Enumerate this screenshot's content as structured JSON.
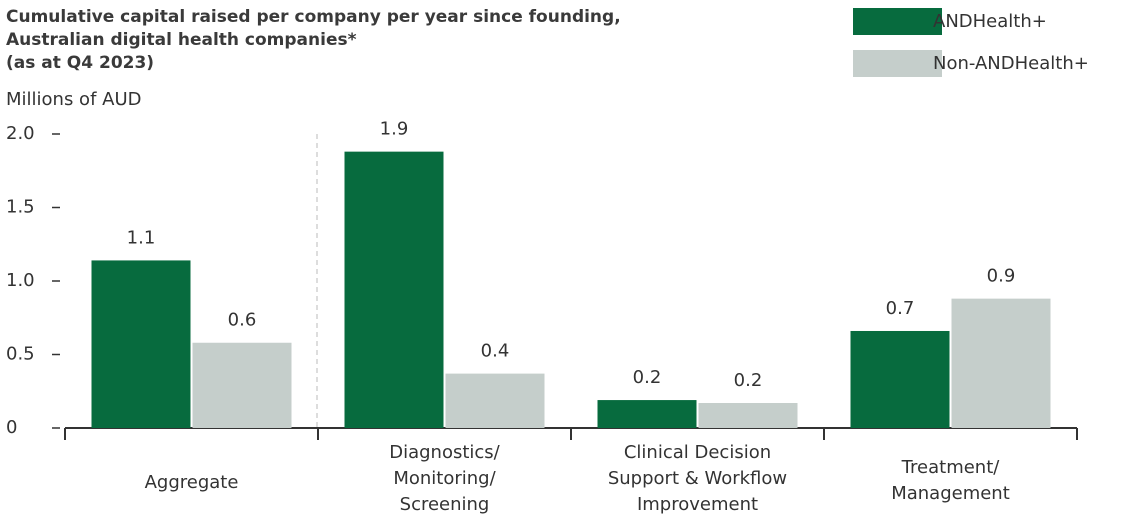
{
  "chart_data": {
    "type": "bar",
    "title": "Cumulative capital raised per company per year since founding,\nAustralian digital health companies*\n(as at Q4 2023)",
    "subtitle": "Millions of AUD",
    "categories": [
      "Aggregate",
      "Diagnostics/\nMonitoring/\nScreening",
      "Clinical Decision\nSupport & Workflow\nImprovement",
      "Treatment/\nManagement"
    ],
    "series": [
      {
        "name": "ANDHealth+",
        "color": "#076b3e",
        "values": [
          1.14,
          1.88,
          0.19,
          0.66
        ],
        "value_labels": [
          "1.1",
          "1.9",
          "0.2",
          "0.7"
        ]
      },
      {
        "name": "Non-ANDHealth+",
        "color": "#c5cecb",
        "values": [
          0.58,
          0.37,
          0.17,
          0.88
        ],
        "value_labels": [
          "0.6",
          "0.4",
          "0.2",
          "0.9"
        ]
      }
    ],
    "ylim": [
      0,
      2
    ],
    "yticks": [
      0,
      0.5,
      {
        "value": 1,
        "label": "1.0"
      },
      1.5,
      {
        "value": 2,
        "label": "2.0"
      }
    ],
    "legend": "top-right"
  }
}
